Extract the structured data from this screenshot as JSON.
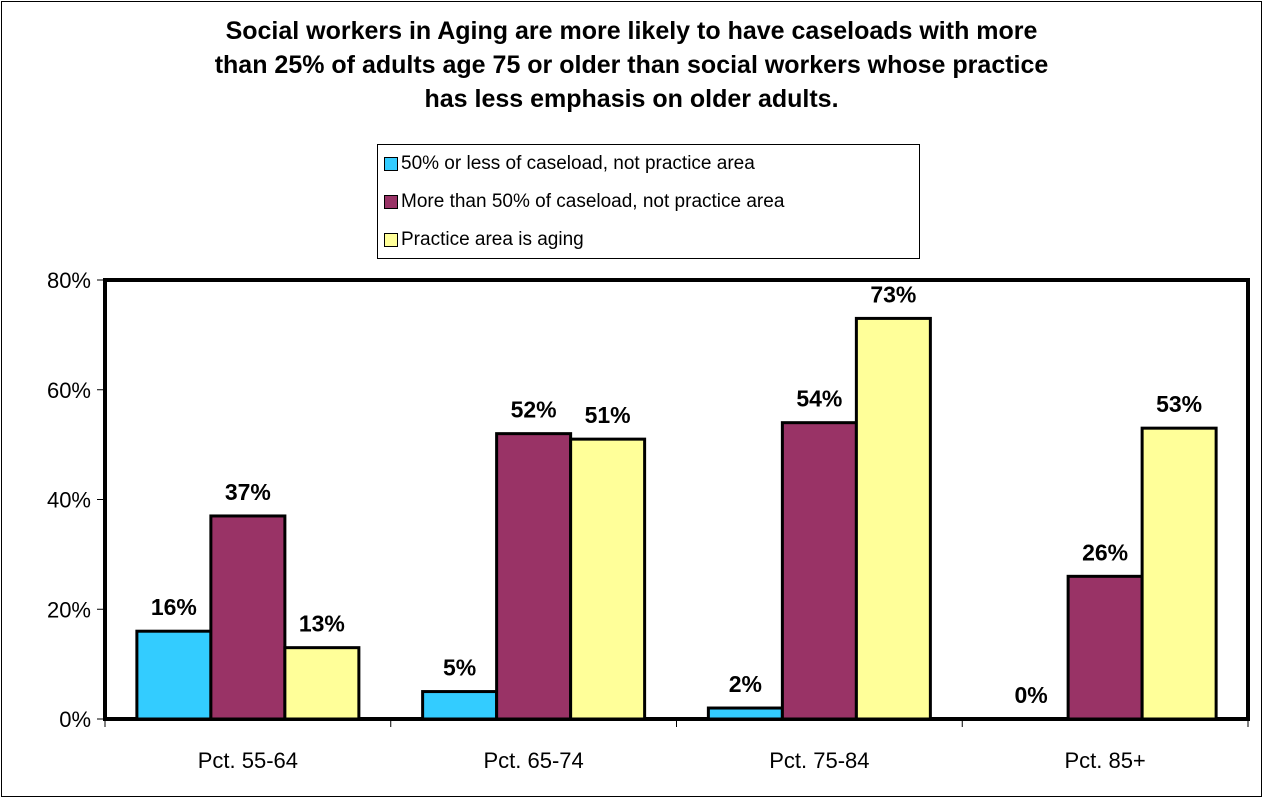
{
  "chart_data": {
    "type": "bar",
    "title": [
      "Social workers in Aging are more likely to have caseloads with more",
      "than 25% of adults age 75 or older than social workers whose practice",
      "has less emphasis on older adults."
    ],
    "categories": [
      "Pct. 55-64",
      "Pct. 65-74",
      "Pct. 75-84",
      "Pct. 85+"
    ],
    "series": [
      {
        "name": "50% or less of caseload, not practice area",
        "color": "#33CCFF",
        "values": [
          16,
          5,
          2,
          0
        ]
      },
      {
        "name": "More than 50% of caseload, not practice area",
        "color": "#993366",
        "values": [
          37,
          52,
          54,
          26
        ]
      },
      {
        "name": "Practice area is aging",
        "color": "#FFFF99",
        "values": [
          13,
          51,
          73,
          53
        ]
      }
    ],
    "value_format": "percent",
    "ylim": [
      0,
      80
    ],
    "yticks": [
      "0%",
      "20%",
      "40%",
      "60%",
      "80%"
    ],
    "legend_position": "top-center",
    "grid": false
  }
}
